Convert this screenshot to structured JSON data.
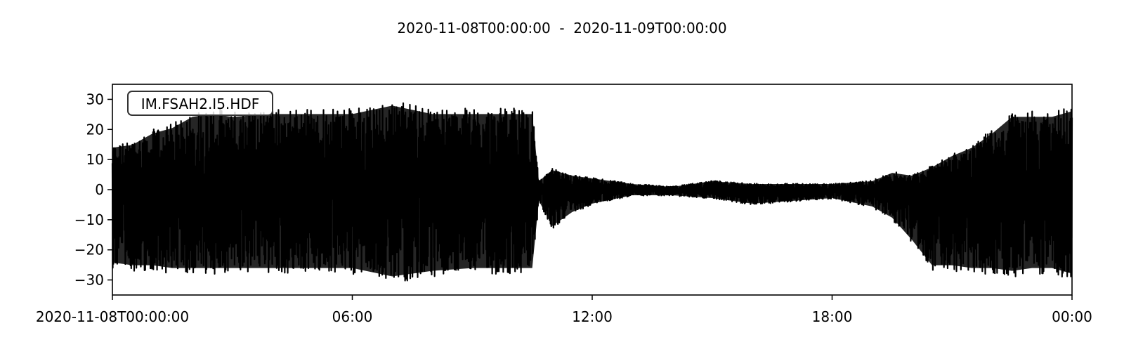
{
  "chart_data": {
    "type": "line",
    "title": "2020-11-08T00:00:00  -  2020-11-09T00:00:00",
    "trace_label": "IM.FSAH2.I5.HDF",
    "x_range": [
      "2020-11-08T00:00:00",
      "2020-11-09T00:00:00"
    ],
    "x_ticks": [
      {
        "time": "2020-11-08T00:00:00",
        "label": "2020-11-08T00:00:00"
      },
      {
        "time": "2020-11-08T06:00:00",
        "label": "06:00"
      },
      {
        "time": "2020-11-08T12:00:00",
        "label": "12:00"
      },
      {
        "time": "2020-11-08T18:00:00",
        "label": "18:00"
      },
      {
        "time": "2020-11-09T00:00:00",
        "label": "00:00"
      }
    ],
    "ylim": [
      -35,
      35
    ],
    "y_ticks": [
      30,
      20,
      10,
      0,
      -10,
      -20,
      -30
    ],
    "grid": false,
    "series": [
      {
        "color": "#000000",
        "envelope": {
          "time": [
            "2020-11-08T00:00:00",
            "2020-11-08T00:30:00",
            "2020-11-08T01:00:00",
            "2020-11-08T01:30:00",
            "2020-11-08T02:00:00",
            "2020-11-08T02:30:00",
            "2020-11-08T03:00:00",
            "2020-11-08T04:00:00",
            "2020-11-08T05:00:00",
            "2020-11-08T06:00:00",
            "2020-11-08T07:00:00",
            "2020-11-08T08:00:00",
            "2020-11-08T09:00:00",
            "2020-11-08T10:00:00",
            "2020-11-08T10:30:00",
            "2020-11-08T10:40:00",
            "2020-11-08T11:00:00",
            "2020-11-08T11:30:00",
            "2020-11-08T12:00:00",
            "2020-11-08T13:00:00",
            "2020-11-08T14:00:00",
            "2020-11-08T15:00:00",
            "2020-11-08T16:00:00",
            "2020-11-08T17:00:00",
            "2020-11-08T18:00:00",
            "2020-11-08T19:00:00",
            "2020-11-08T19:30:00",
            "2020-11-08T20:00:00",
            "2020-11-08T20:30:00",
            "2020-11-08T21:00:00",
            "2020-11-08T21:30:00",
            "2020-11-08T22:00:00",
            "2020-11-08T22:30:00",
            "2020-11-08T23:00:00",
            "2020-11-08T23:30:00",
            "2020-11-09T00:00:00"
          ],
          "max": [
            15,
            16,
            20,
            22,
            26,
            27,
            26,
            27,
            27,
            27,
            30,
            27,
            27,
            27,
            27,
            3,
            7,
            5,
            4,
            2,
            1,
            3,
            2,
            2,
            2,
            3,
            6,
            5,
            8,
            12,
            15,
            20,
            26,
            26,
            26,
            28
          ],
          "min": [
            -26,
            -27,
            -27,
            -28,
            -28,
            -28,
            -28,
            -28,
            -28,
            -28,
            -31,
            -29,
            -28,
            -28,
            -28,
            -4,
            -13,
            -8,
            -5,
            -2,
            -2,
            -3,
            -5,
            -4,
            -3,
            -6,
            -10,
            -18,
            -27,
            -27,
            -28,
            -28,
            -29,
            -28,
            -28,
            -30
          ]
        }
      }
    ]
  }
}
